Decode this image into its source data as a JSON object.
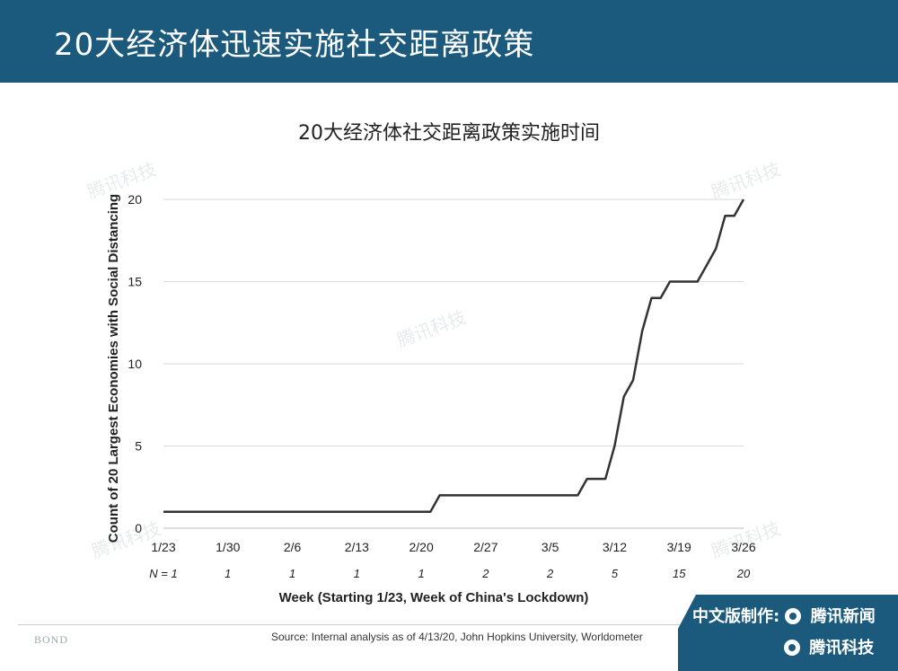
{
  "header": {
    "title": "20大经济体迅速实施社交距离政策"
  },
  "chart_data": {
    "type": "line",
    "title": "20大经济体社交距离政策实施时间",
    "xlabel": "Week (Starting 1/23, Week of China's Lockdown)",
    "ylabel": "Count of 20 Largest Economies with Social Distancing",
    "ylim": [
      0,
      20
    ],
    "yticks": [
      0,
      5,
      10,
      15,
      20
    ],
    "grid": true,
    "x_range_days": [
      0,
      63
    ],
    "xticks": [
      {
        "label": "1/23",
        "n": "N = 1"
      },
      {
        "label": "1/30",
        "n": "1"
      },
      {
        "label": "2/6",
        "n": "1"
      },
      {
        "label": "2/13",
        "n": "1"
      },
      {
        "label": "2/20",
        "n": "1"
      },
      {
        "label": "2/27",
        "n": "2"
      },
      {
        "label": "3/5",
        "n": "2"
      },
      {
        "label": "3/12",
        "n": "5"
      },
      {
        "label": "3/19",
        "n": "15"
      },
      {
        "label": "3/26",
        "n": "20"
      }
    ],
    "series": [
      {
        "color": "#333333",
        "points": [
          [
            "1/23",
            1
          ],
          [
            "2/21",
            1
          ],
          [
            "2/22",
            2
          ],
          [
            "3/8",
            2
          ],
          [
            "3/9",
            3
          ],
          [
            "3/11",
            3
          ],
          [
            "3/12",
            5
          ],
          [
            "3/13",
            8
          ],
          [
            "3/14",
            9
          ],
          [
            "3/15",
            12
          ],
          [
            "3/16",
            14
          ],
          [
            "3/17",
            14
          ],
          [
            "3/18",
            15
          ],
          [
            "3/21",
            15
          ],
          [
            "3/22",
            16
          ],
          [
            "3/23",
            17
          ],
          [
            "3/24",
            19
          ],
          [
            "3/25",
            19
          ],
          [
            "3/26",
            20
          ]
        ]
      }
    ]
  },
  "footer": {
    "source": "Source: Internal analysis as of 4/13/20, John Hopkins University, Worldometer",
    "bond": "BOND",
    "badge_line1": "中文版制作:",
    "badge_brand1": "腾讯新闻",
    "badge_brand2": "腾讯科技"
  },
  "watermark_text": "腾讯科技"
}
